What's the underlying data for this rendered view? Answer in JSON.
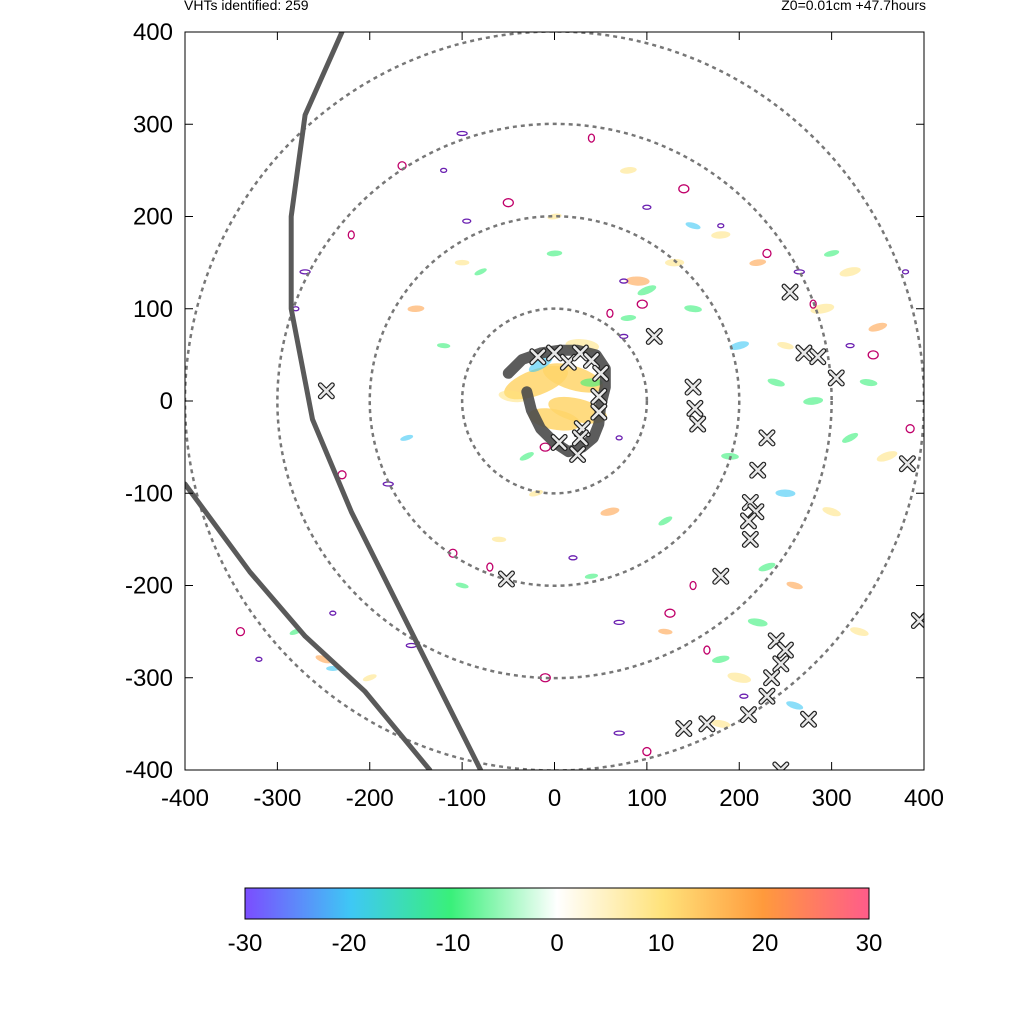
{
  "header": {
    "left": "VHTs identified: 259",
    "right": "Z0=0.01cm  +47.7hours"
  },
  "chart_data": {
    "type": "heatmap",
    "title": "",
    "xlabel": "",
    "ylabel": "",
    "xlim": [
      -400,
      400
    ],
    "ylim": [
      -400,
      400
    ],
    "x_ticks": [
      "-400",
      "-300",
      "-200",
      "-100",
      "0",
      "100",
      "200",
      "300",
      "400"
    ],
    "y_ticks": [
      "400",
      "300",
      "200",
      "100",
      "0",
      "-100",
      "-200",
      "-300",
      "-400"
    ],
    "colorbar": {
      "min": -30,
      "max": 30,
      "ticks": [
        "-30",
        "-20",
        "-10",
        "0",
        "10",
        "20",
        "30"
      ],
      "colors": [
        "#7b4dff",
        "#3ec8f5",
        "#39f07a",
        "#ffffff",
        "#ffe27a",
        "#ff9a3c",
        "#ff5c8a"
      ]
    },
    "range_rings_radius": [
      100,
      200,
      300,
      400
    ],
    "vht_markers": [
      [
        -247,
        11
      ],
      [
        -52,
        -193
      ],
      [
        -18,
        48
      ],
      [
        0,
        52
      ],
      [
        15,
        42
      ],
      [
        28,
        52
      ],
      [
        40,
        44
      ],
      [
        50,
        30
      ],
      [
        48,
        5
      ],
      [
        48,
        -12
      ],
      [
        30,
        -30
      ],
      [
        28,
        -40
      ],
      [
        5,
        -45
      ],
      [
        25,
        -58
      ],
      [
        108,
        70
      ],
      [
        150,
        15
      ],
      [
        152,
        -8
      ],
      [
        155,
        -25
      ],
      [
        230,
        -40
      ],
      [
        220,
        -75
      ],
      [
        212,
        -110
      ],
      [
        218,
        -120
      ],
      [
        210,
        -130
      ],
      [
        212,
        -150
      ],
      [
        180,
        -190
      ],
      [
        255,
        118
      ],
      [
        270,
        52
      ],
      [
        285,
        48
      ],
      [
        305,
        25
      ],
      [
        382,
        -68
      ],
      [
        395,
        -238
      ],
      [
        240,
        -260
      ],
      [
        250,
        -270
      ],
      [
        245,
        -285
      ],
      [
        235,
        -300
      ],
      [
        230,
        -320
      ],
      [
        210,
        -340
      ],
      [
        165,
        -350
      ],
      [
        140,
        -355
      ],
      [
        275,
        -345
      ],
      [
        245,
        -400
      ]
    ],
    "tracks": [
      {
        "points": [
          [
            -230,
            400
          ],
          [
            -270,
            310
          ],
          [
            -285,
            200
          ],
          [
            -285,
            100
          ],
          [
            -262,
            -20
          ],
          [
            -220,
            -120
          ],
          [
            -165,
            -230
          ],
          [
            -120,
            -320
          ],
          [
            -80,
            -400
          ]
        ]
      },
      {
        "points": [
          [
            -400,
            -90
          ],
          [
            -330,
            -185
          ],
          [
            -270,
            -255
          ],
          [
            -205,
            -315
          ],
          [
            -135,
            -400
          ]
        ]
      }
    ],
    "positive_patches": [
      [
        -20,
        20,
        28
      ],
      [
        20,
        25,
        26
      ],
      [
        25,
        -10,
        25
      ],
      [
        0,
        -20,
        22
      ],
      [
        -45,
        5,
        12
      ],
      [
        30,
        60,
        14
      ],
      [
        90,
        130,
        10
      ],
      [
        130,
        150,
        8
      ],
      [
        180,
        180,
        8
      ],
      [
        220,
        150,
        7
      ],
      [
        290,
        100,
        10
      ],
      [
        320,
        140,
        9
      ],
      [
        350,
        80,
        8
      ],
      [
        360,
        -60,
        9
      ],
      [
        300,
        -120,
        8
      ],
      [
        260,
        -200,
        7
      ],
      [
        200,
        -300,
        10
      ],
      [
        180,
        -350,
        8
      ],
      [
        120,
        -250,
        6
      ],
      [
        -60,
        -150,
        6
      ],
      [
        -100,
        150,
        6
      ],
      [
        -150,
        100,
        7
      ],
      [
        80,
        250,
        7
      ],
      [
        0,
        200,
        6
      ],
      [
        60,
        -120,
        8
      ],
      [
        -20,
        -100,
        6
      ],
      [
        -200,
        -300,
        6
      ],
      [
        -250,
        -280,
        7
      ],
      [
        330,
        -250,
        8
      ],
      [
        250,
        60,
        7
      ]
    ],
    "negative_patches": [
      [
        -15,
        40,
        12
      ],
      [
        40,
        20,
        10
      ],
      [
        100,
        120,
        9
      ],
      [
        150,
        100,
        8
      ],
      [
        200,
        60,
        9
      ],
      [
        240,
        20,
        8
      ],
      [
        280,
        0,
        9
      ],
      [
        320,
        -40,
        8
      ],
      [
        250,
        -100,
        9
      ],
      [
        230,
        -180,
        8
      ],
      [
        220,
        -240,
        9
      ],
      [
        180,
        -280,
        8
      ],
      [
        260,
        -330,
        8
      ],
      [
        0,
        160,
        7
      ],
      [
        -80,
        140,
        6
      ],
      [
        -120,
        60,
        6
      ],
      [
        -160,
        -40,
        6
      ],
      [
        -100,
        -200,
        6
      ],
      [
        40,
        -190,
        6
      ],
      [
        120,
        -130,
        7
      ],
      [
        -240,
        -290,
        6
      ],
      [
        -280,
        -250,
        6
      ],
      [
        340,
        20,
        8
      ],
      [
        300,
        160,
        7
      ],
      [
        150,
        190,
        7
      ],
      [
        80,
        90,
        7
      ],
      [
        -30,
        -60,
        7
      ],
      [
        190,
        -60,
        8
      ]
    ],
    "contours": [
      [
        -280,
        100
      ],
      [
        -230,
        -80
      ],
      [
        -180,
        -90
      ],
      [
        -220,
        180
      ],
      [
        -95,
        195
      ],
      [
        -50,
        215
      ],
      [
        -120,
        250
      ],
      [
        -165,
        255
      ],
      [
        -100,
        290
      ],
      [
        40,
        285
      ],
      [
        100,
        210
      ],
      [
        140,
        230
      ],
      [
        180,
        190
      ],
      [
        230,
        160
      ],
      [
        265,
        140
      ],
      [
        280,
        105
      ],
      [
        320,
        60
      ],
      [
        345,
        50
      ],
      [
        380,
        140
      ],
      [
        385,
        -30
      ],
      [
        -155,
        -265
      ],
      [
        -70,
        -180
      ],
      [
        20,
        -170
      ],
      [
        -10,
        -300
      ],
      [
        -320,
        -280
      ],
      [
        -340,
        -250
      ],
      [
        -270,
        140
      ],
      [
        60,
        95
      ],
      [
        75,
        70
      ],
      [
        -10,
        -50
      ],
      [
        70,
        -40
      ],
      [
        -110,
        -165
      ],
      [
        70,
        -240
      ],
      [
        165,
        -270
      ],
      [
        205,
        -320
      ],
      [
        125,
        -230
      ],
      [
        -240,
        -230
      ],
      [
        100,
        -380
      ],
      [
        70,
        -360
      ],
      [
        150,
        -200
      ],
      [
        75,
        130
      ],
      [
        95,
        105
      ]
    ]
  }
}
